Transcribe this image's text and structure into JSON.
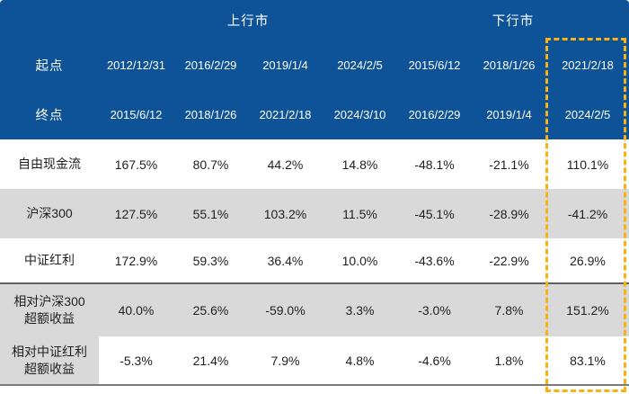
{
  "colors": {
    "header_bg": "#0E5397",
    "header_text": "#FFFFFF",
    "alt_row_bg": "#D9D9D9",
    "body_text": "#1F1F1F",
    "highlight_dashed_border": "#F8B312",
    "section_divider": "#5F5F5F"
  },
  "header": {
    "up_market_label": "上行市",
    "down_market_label": "下行市",
    "start_label": "起点",
    "end_label": "终点",
    "start_dates": [
      "2012/12/31",
      "2016/2/29",
      "2019/1/4",
      "2024/2/5",
      "2015/6/12",
      "2018/1/26",
      "2021/2/18"
    ],
    "end_dates": [
      "2015/6/12",
      "2018/1/26",
      "2021/2/18",
      "2024/3/10",
      "2016/2/29",
      "2019/1/4",
      "2024/2/5"
    ]
  },
  "rows": [
    {
      "label": "自由现金流",
      "values": [
        "167.5%",
        "80.7%",
        "44.2%",
        "14.8%",
        "-48.1%",
        "-21.1%",
        "110.1%"
      ]
    },
    {
      "label": "沪深300",
      "values": [
        "127.5%",
        "55.1%",
        "103.2%",
        "11.5%",
        "-45.1%",
        "-28.9%",
        "-41.2%"
      ]
    },
    {
      "label": "中证红利",
      "values": [
        "172.9%",
        "59.3%",
        "36.4%",
        "10.0%",
        "-43.6%",
        "-22.9%",
        "26.9%"
      ]
    },
    {
      "label": "相对沪深300\n超额收益",
      "values": [
        "40.0%",
        "25.6%",
        "-59.0%",
        "3.3%",
        "-3.0%",
        "7.8%",
        "151.2%"
      ]
    },
    {
      "label": "相对中证红利\n超额收益",
      "values": [
        "-5.3%",
        "21.4%",
        "7.9%",
        "4.8%",
        "-4.6%",
        "1.8%",
        "83.1%"
      ]
    }
  ],
  "chart_data": {
    "type": "table",
    "title": "",
    "column_groups": [
      {
        "label": "上行市",
        "span": 4
      },
      {
        "label": "下行市",
        "span": 3
      }
    ],
    "columns": [
      {
        "group": "上行市",
        "start": "2012/12/31",
        "end": "2015/6/12"
      },
      {
        "group": "上行市",
        "start": "2016/2/29",
        "end": "2018/1/26"
      },
      {
        "group": "上行市",
        "start": "2019/1/4",
        "end": "2021/2/18"
      },
      {
        "group": "上行市",
        "start": "2024/2/5",
        "end": "2024/3/10"
      },
      {
        "group": "下行市",
        "start": "2015/6/12",
        "end": "2016/2/29"
      },
      {
        "group": "下行市",
        "start": "2018/1/26",
        "end": "2019/1/4"
      },
      {
        "group": "下行市",
        "start": "2021/2/18",
        "end": "2024/2/5"
      }
    ],
    "row_labels": [
      "自由现金流",
      "沪深300",
      "中证红利",
      "相对沪深300超额收益",
      "相对中证红利超额收益"
    ],
    "values_pct": [
      [
        167.5,
        80.7,
        44.2,
        14.8,
        -48.1,
        -21.1,
        110.1
      ],
      [
        127.5,
        55.1,
        103.2,
        11.5,
        -45.1,
        -28.9,
        -41.2
      ],
      [
        172.9,
        59.3,
        36.4,
        10.0,
        -43.6,
        -22.9,
        26.9
      ],
      [
        40.0,
        25.6,
        -59.0,
        3.3,
        -3.0,
        7.8,
        151.2
      ],
      [
        -5.3,
        21.4,
        7.9,
        4.8,
        -4.6,
        1.8,
        83.1
      ]
    ],
    "units": "%",
    "highlighted_column_index": 6,
    "highlighted_period": "2021/2/18 → 2024/2/5"
  }
}
